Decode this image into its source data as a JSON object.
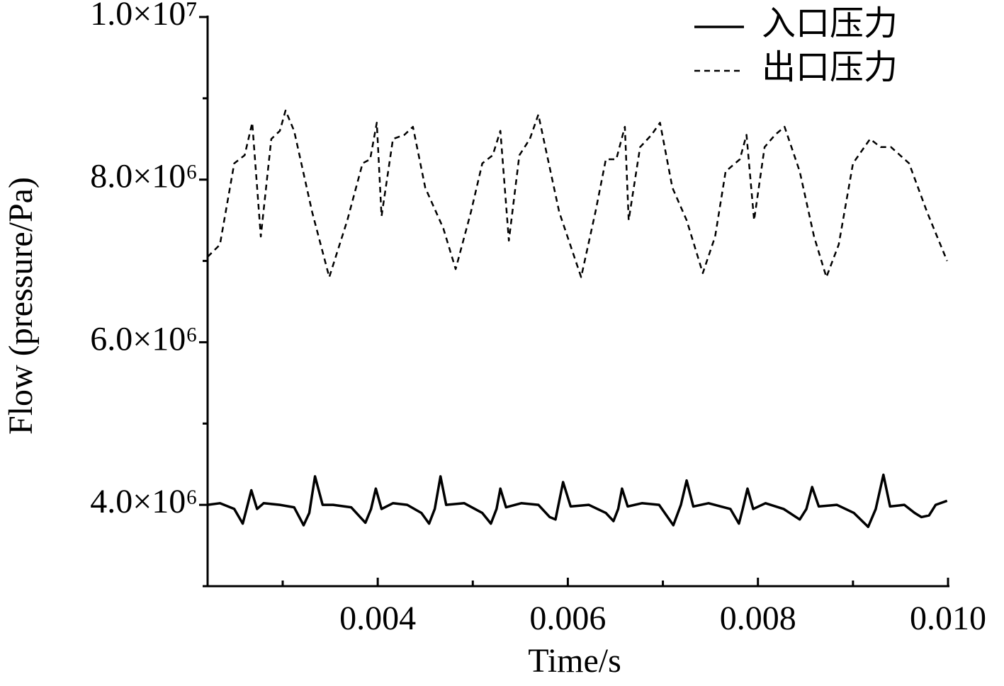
{
  "chart_data": {
    "type": "line",
    "xlabel": "Time/s",
    "ylabel": "Flow (pressure/Pa)",
    "xlim": [
      0.00221,
      0.01
    ],
    "xticks": [
      0.004,
      0.006,
      0.008,
      {
        "value": 0.01,
        "label": "0.010"
      }
    ],
    "minor_xticks": [
      0.003,
      0.005,
      0.007,
      0.009
    ],
    "ylim": [
      3000000,
      10000000
    ],
    "yticks": [
      {
        "value": 4000000,
        "label": "4.0×10⁶"
      },
      {
        "value": 6000000,
        "label": "6.0×10⁶"
      },
      {
        "value": 8000000,
        "label": "8.0×10⁶"
      },
      {
        "value": 10000000,
        "label": "1.0×10⁷"
      }
    ],
    "minor_yticks": [
      3000000,
      5000000,
      7000000,
      9000000
    ],
    "legend": "top-right",
    "series": [
      {
        "name": "入口压力",
        "color": "#000000",
        "dash": "solid",
        "x": [
          0.00221,
          0.00234,
          0.00249,
          0.00258,
          0.00262,
          0.00267,
          0.00273,
          0.0028,
          0.00297,
          0.00312,
          0.00322,
          0.00328,
          0.00334,
          0.00342,
          0.00353,
          0.00372,
          0.00387,
          0.00393,
          0.00398,
          0.00404,
          0.00416,
          0.00431,
          0.00446,
          0.00454,
          0.0046,
          0.00466,
          0.00472,
          0.00491,
          0.0051,
          0.00519,
          0.00525,
          0.00529,
          0.00535,
          0.00551,
          0.00569,
          0.00581,
          0.00587,
          0.00595,
          0.00603,
          0.00622,
          0.0064,
          0.00648,
          0.00653,
          0.00657,
          0.00663,
          0.00678,
          0.00696,
          0.00711,
          0.00719,
          0.00725,
          0.00732,
          0.00748,
          0.00771,
          0.0078,
          0.00784,
          0.00789,
          0.00795,
          0.00808,
          0.00827,
          0.00844,
          0.00851,
          0.00857,
          0.00864,
          0.00883,
          0.00901,
          0.00916,
          0.00924,
          0.00932,
          0.00939,
          0.00954,
          0.00965,
          0.00972,
          0.0098,
          0.00987,
          0.00999
        ],
        "values": [
          4000000,
          4020000,
          3950000,
          3770000,
          3950000,
          4180000,
          3950000,
          4020000,
          4000000,
          3970000,
          3750000,
          3900000,
          4350000,
          4000000,
          4000000,
          3970000,
          3780000,
          3950000,
          4200000,
          3950000,
          4020000,
          4000000,
          3900000,
          3770000,
          3950000,
          4350000,
          4000000,
          4020000,
          3900000,
          3770000,
          3950000,
          4200000,
          3970000,
          4020000,
          4000000,
          3850000,
          3820000,
          4280000,
          3980000,
          4000000,
          3900000,
          3800000,
          3950000,
          4200000,
          3980000,
          4020000,
          4000000,
          3750000,
          4000000,
          4300000,
          3980000,
          4020000,
          3950000,
          3770000,
          3950000,
          4200000,
          3950000,
          4020000,
          3950000,
          3820000,
          3950000,
          4220000,
          3980000,
          4000000,
          3900000,
          3730000,
          3950000,
          4370000,
          3980000,
          4000000,
          3900000,
          3850000,
          3870000,
          4000000,
          4050000
        ]
      },
      {
        "name": "出口压力",
        "color": "#000000",
        "dash": "dashed",
        "x": [
          0.00221,
          0.00234,
          0.00249,
          0.0026,
          0.00268,
          0.00277,
          0.00288,
          0.00297,
          0.00303,
          0.00312,
          0.00331,
          0.00349,
          0.00368,
          0.00384,
          0.00392,
          0.00399,
          0.00404,
          0.00416,
          0.00428,
          0.00437,
          0.0045,
          0.00469,
          0.00482,
          0.00498,
          0.0051,
          0.00521,
          0.00529,
          0.00538,
          0.00549,
          0.0056,
          0.00569,
          0.00591,
          0.00614,
          0.00629,
          0.0064,
          0.00651,
          0.0066,
          0.00664,
          0.00676,
          0.00688,
          0.00697,
          0.0071,
          0.00725,
          0.00742,
          0.00755,
          0.00766,
          0.00781,
          0.00788,
          0.00796,
          0.00807,
          0.00818,
          0.00828,
          0.00844,
          0.00859,
          0.00872,
          0.00885,
          0.009,
          0.00918,
          0.00929,
          0.0094,
          0.00959,
          0.00978,
          0.00999
        ],
        "values": [
          7050000,
          7200000,
          8200000,
          8300000,
          8700000,
          7300000,
          8500000,
          8600000,
          8850000,
          8600000,
          7600000,
          6800000,
          7500000,
          8200000,
          8250000,
          8700000,
          7550000,
          8500000,
          8550000,
          8650000,
          7900000,
          7400000,
          6900000,
          7600000,
          8200000,
          8300000,
          8600000,
          7250000,
          8300000,
          8500000,
          8800000,
          7600000,
          6800000,
          7600000,
          8250000,
          8250000,
          8650000,
          7500000,
          8400000,
          8550000,
          8700000,
          7900000,
          7500000,
          6850000,
          7300000,
          8100000,
          8250000,
          8550000,
          7500000,
          8400000,
          8550000,
          8650000,
          8100000,
          7300000,
          6800000,
          7200000,
          8200000,
          8500000,
          8400000,
          8400000,
          8200000,
          7600000,
          7000000
        ]
      }
    ]
  }
}
